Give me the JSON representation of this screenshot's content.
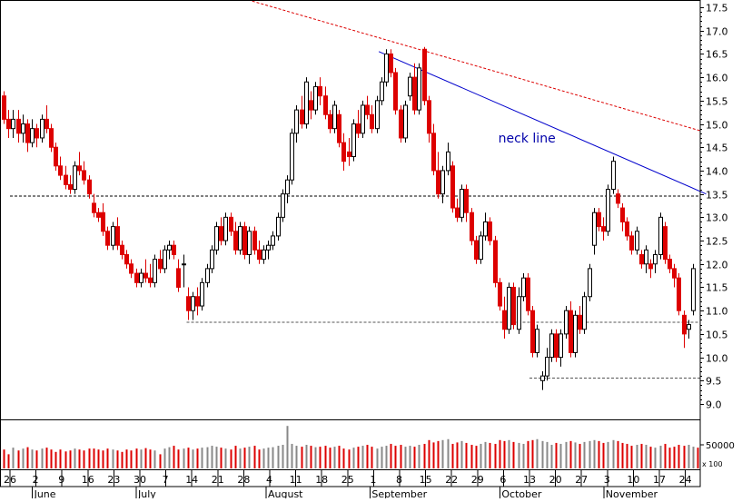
{
  "chart_data": {
    "type": "candlestick",
    "y_axis": {
      "position": "right",
      "min": 9.0,
      "max": 17.5,
      "ticks": [
        "17.5",
        "17.0",
        "16.5",
        "16.0",
        "15.5",
        "15.0",
        "14.5",
        "14.0",
        "13.5",
        "13.0",
        "12.5",
        "12.0",
        "11.5",
        "11.0",
        "10.5",
        "10.0",
        "9.5",
        "9.0"
      ]
    },
    "volume_axis": {
      "tick_label": "50000",
      "unit_label": "x 100",
      "max": 100000
    },
    "x_axis": {
      "day_labels": [
        "26",
        "2",
        "9",
        "16",
        "23",
        "30",
        "7",
        "14",
        "21",
        "28",
        "4",
        "11",
        "18",
        "25",
        "1",
        "8",
        "15",
        "22",
        "29",
        "6",
        "13",
        "20",
        "27",
        "3",
        "10",
        "17",
        "24"
      ],
      "month_labels": [
        {
          "label": "June",
          "day_index": 1
        },
        {
          "label": "July",
          "day_index": 5
        },
        {
          "label": "August",
          "day_index": 10
        },
        {
          "label": "September",
          "day_index": 14
        },
        {
          "label": "October",
          "day_index": 19
        },
        {
          "label": "November",
          "day_index": 23
        }
      ]
    },
    "horizontal_levels": [
      {
        "value": 13.45,
        "style": "dashed",
        "color": "#000000",
        "from_day": 0
      },
      {
        "value": 10.75,
        "style": "dashed",
        "color": "#555555",
        "from_day": 6.8
      },
      {
        "value": 9.55,
        "style": "dashed",
        "color": "#555555",
        "from_day": 20
      }
    ],
    "trendlines": [
      {
        "name": "",
        "from": [
          5.8,
          18.2
        ],
        "to": [
          26.6,
          14.85
        ],
        "color": "#dd0000",
        "style": "dotted"
      },
      {
        "name": "neck line",
        "from": [
          14.2,
          16.55
        ],
        "to": [
          26.8,
          13.5
        ],
        "color": "#0000cc",
        "style": "solid"
      }
    ],
    "annotations": [
      {
        "text": "neck line",
        "day": 18.8,
        "value": 14.6,
        "color": "#0000aa"
      }
    ],
    "colors": {
      "up": "#000000",
      "down": "#dd0000",
      "volume_up": "#888888",
      "volume_down": "#dd0000"
    },
    "candles": [
      [
        15.6,
        15.7,
        15.0,
        15.1
      ],
      [
        15.1,
        15.3,
        14.7,
        14.9
      ],
      [
        14.9,
        15.3,
        14.7,
        15.1
      ],
      [
        15.1,
        15.3,
        14.6,
        14.8
      ],
      [
        14.8,
        15.2,
        14.6,
        15.0
      ],
      [
        15.0,
        15.1,
        14.4,
        14.6
      ],
      [
        14.6,
        15.1,
        14.5,
        14.9
      ],
      [
        14.9,
        15.0,
        14.5,
        14.7
      ],
      [
        14.7,
        15.2,
        14.6,
        15.1
      ],
      [
        15.1,
        15.4,
        14.8,
        14.9
      ],
      [
        14.9,
        15.0,
        14.4,
        14.5
      ],
      [
        14.5,
        14.6,
        14.0,
        14.1
      ],
      [
        14.1,
        14.3,
        13.8,
        13.9
      ],
      [
        13.9,
        14.1,
        13.6,
        13.7
      ],
      [
        13.7,
        13.9,
        13.5,
        13.6
      ],
      [
        13.6,
        14.2,
        13.5,
        14.1
      ],
      [
        14.1,
        14.4,
        13.9,
        14.0
      ],
      [
        14.0,
        14.2,
        13.7,
        13.8
      ],
      [
        13.8,
        13.9,
        13.4,
        13.5
      ],
      [
        13.3,
        13.5,
        13.0,
        13.1
      ],
      [
        13.1,
        13.2,
        12.9,
        13.0
      ],
      [
        13.1,
        13.3,
        12.6,
        12.7
      ],
      [
        12.7,
        12.8,
        12.3,
        12.4
      ],
      [
        12.4,
        12.9,
        12.3,
        12.8
      ],
      [
        12.8,
        13.0,
        12.3,
        12.4
      ],
      [
        12.4,
        12.5,
        12.1,
        12.2
      ],
      [
        12.2,
        12.3,
        11.9,
        12.0
      ],
      [
        12.0,
        12.1,
        11.7,
        11.8
      ],
      [
        11.8,
        11.9,
        11.5,
        11.6
      ],
      [
        11.6,
        11.9,
        11.5,
        11.8
      ],
      [
        11.8,
        12.1,
        11.6,
        11.7
      ],
      [
        11.7,
        12.0,
        11.5,
        11.6
      ],
      [
        11.6,
        12.2,
        11.5,
        12.1
      ],
      [
        12.1,
        12.3,
        11.8,
        11.9
      ],
      [
        11.9,
        12.4,
        11.8,
        12.3
      ],
      [
        12.3,
        12.5,
        12.1,
        12.4
      ],
      [
        12.4,
        12.5,
        12.1,
        12.2
      ],
      [
        11.9,
        12.1,
        11.4,
        11.5
      ],
      [
        12.0,
        12.2,
        11.5,
        12.0
      ],
      [
        11.3,
        11.5,
        10.8,
        11.0
      ],
      [
        11.0,
        11.4,
        10.8,
        11.3
      ],
      [
        11.3,
        11.5,
        10.9,
        11.1
      ],
      [
        11.1,
        11.7,
        11.0,
        11.6
      ],
      [
        11.6,
        12.0,
        11.5,
        11.9
      ],
      [
        11.9,
        12.4,
        11.8,
        12.3
      ],
      [
        12.3,
        12.9,
        12.2,
        12.8
      ],
      [
        12.8,
        13.0,
        12.4,
        12.5
      ],
      [
        12.5,
        13.1,
        12.4,
        13.0
      ],
      [
        13.0,
        13.1,
        12.6,
        12.7
      ],
      [
        12.7,
        12.9,
        12.2,
        12.3
      ],
      [
        12.3,
        12.9,
        12.2,
        12.8
      ],
      [
        12.8,
        12.9,
        12.1,
        12.2
      ],
      [
        12.2,
        12.8,
        12.0,
        12.7
      ],
      [
        12.7,
        12.8,
        12.2,
        12.3
      ],
      [
        12.3,
        12.5,
        12.0,
        12.1
      ],
      [
        12.1,
        12.4,
        12.0,
        12.3
      ],
      [
        12.3,
        12.5,
        12.1,
        12.4
      ],
      [
        12.4,
        12.7,
        12.3,
        12.6
      ],
      [
        12.6,
        13.1,
        12.5,
        13.0
      ],
      [
        13.0,
        13.6,
        12.9,
        13.5
      ],
      [
        13.5,
        13.9,
        13.3,
        13.8
      ],
      [
        13.8,
        14.9,
        13.7,
        14.8
      ],
      [
        14.8,
        15.4,
        14.6,
        15.3
      ],
      [
        15.3,
        15.6,
        14.9,
        15.0
      ],
      [
        15.0,
        16.0,
        14.9,
        15.9
      ],
      [
        15.5,
        15.7,
        15.1,
        15.3
      ],
      [
        15.3,
        15.9,
        15.2,
        15.8
      ],
      [
        15.8,
        16.0,
        15.4,
        15.6
      ],
      [
        15.6,
        15.8,
        15.1,
        15.2
      ],
      [
        15.2,
        15.3,
        14.8,
        14.9
      ],
      [
        14.9,
        15.5,
        14.8,
        15.4
      ],
      [
        15.2,
        15.3,
        14.5,
        14.6
      ],
      [
        14.6,
        14.8,
        14.0,
        14.2
      ],
      [
        14.4,
        14.7,
        14.1,
        14.3
      ],
      [
        14.3,
        15.1,
        14.2,
        15.0
      ],
      [
        15.0,
        15.3,
        14.7,
        14.8
      ],
      [
        14.8,
        15.5,
        14.7,
        15.4
      ],
      [
        15.4,
        15.6,
        15.1,
        15.2
      ],
      [
        15.2,
        15.4,
        14.8,
        14.9
      ],
      [
        14.9,
        15.6,
        14.8,
        15.5
      ],
      [
        15.5,
        16.0,
        15.4,
        15.9
      ],
      [
        15.9,
        16.6,
        15.8,
        16.5
      ],
      [
        16.5,
        16.6,
        16.0,
        16.1
      ],
      [
        16.1,
        16.2,
        15.2,
        15.3
      ],
      [
        15.3,
        15.4,
        14.6,
        14.7
      ],
      [
        14.7,
        15.5,
        14.6,
        15.4
      ],
      [
        15.6,
        16.1,
        15.5,
        16.0
      ],
      [
        16.0,
        16.3,
        15.2,
        15.3
      ],
      [
        15.3,
        16.3,
        15.2,
        16.2
      ],
      [
        16.6,
        16.65,
        15.4,
        15.5
      ],
      [
        15.5,
        15.6,
        14.6,
        14.8
      ],
      [
        14.8,
        15.0,
        13.9,
        14.0
      ],
      [
        14.0,
        14.4,
        13.4,
        13.5
      ],
      [
        13.5,
        14.1,
        13.3,
        14.0
      ],
      [
        14.0,
        14.6,
        13.9,
        14.4
      ],
      [
        14.1,
        14.2,
        13.1,
        13.2
      ],
      [
        13.2,
        13.4,
        12.9,
        13.0
      ],
      [
        13.0,
        13.7,
        12.9,
        13.6
      ],
      [
        13.6,
        13.7,
        12.9,
        13.1
      ],
      [
        13.1,
        13.2,
        12.4,
        12.5
      ],
      [
        12.5,
        12.6,
        12.0,
        12.1
      ],
      [
        12.1,
        12.7,
        12.0,
        12.6
      ],
      [
        12.6,
        13.1,
        12.5,
        12.9
      ],
      [
        12.9,
        13.0,
        12.4,
        12.5
      ],
      [
        12.5,
        12.6,
        11.5,
        11.6
      ],
      [
        11.6,
        11.7,
        11.0,
        11.1
      ],
      [
        11.0,
        11.3,
        10.4,
        10.6
      ],
      [
        10.6,
        11.6,
        10.5,
        11.5
      ],
      [
        11.5,
        11.6,
        10.6,
        10.7
      ],
      [
        10.6,
        11.5,
        10.5,
        11.3
      ],
      [
        11.3,
        11.8,
        11.2,
        11.7
      ],
      [
        11.7,
        11.8,
        10.9,
        11.0
      ],
      [
        11.0,
        11.1,
        10.0,
        10.1
      ],
      [
        10.1,
        10.7,
        10.0,
        10.6
      ],
      [
        9.5,
        9.7,
        9.3,
        9.6
      ],
      [
        9.6,
        10.2,
        9.5,
        10.0
      ],
      [
        10.0,
        10.6,
        9.9,
        10.5
      ],
      [
        10.5,
        10.6,
        9.9,
        10.0
      ],
      [
        10.0,
        10.6,
        9.8,
        10.5
      ],
      [
        10.5,
        11.1,
        10.4,
        11.0
      ],
      [
        11.0,
        11.2,
        10.0,
        10.1
      ],
      [
        10.1,
        11.0,
        10.0,
        10.9
      ],
      [
        10.9,
        11.1,
        10.5,
        10.6
      ],
      [
        10.6,
        11.4,
        10.5,
        11.3
      ],
      [
        11.3,
        12.0,
        11.2,
        11.9
      ],
      [
        12.4,
        13.2,
        12.2,
        13.1
      ],
      [
        13.1,
        13.2,
        12.7,
        12.8
      ],
      [
        12.8,
        13.0,
        12.5,
        12.7
      ],
      [
        12.7,
        13.7,
        12.6,
        13.6
      ],
      [
        13.6,
        14.3,
        13.5,
        14.2
      ],
      [
        13.5,
        13.6,
        13.2,
        13.3
      ],
      [
        13.2,
        13.3,
        12.7,
        12.9
      ],
      [
        12.9,
        13.0,
        12.5,
        12.6
      ],
      [
        12.6,
        12.7,
        12.2,
        12.3
      ],
      [
        12.3,
        12.8,
        12.2,
        12.7
      ],
      [
        12.2,
        12.3,
        11.9,
        12.0
      ],
      [
        12.0,
        12.4,
        11.8,
        12.3
      ],
      [
        12.0,
        12.1,
        11.7,
        11.9
      ],
      [
        12.0,
        12.3,
        11.8,
        12.2
      ],
      [
        12.2,
        13.1,
        12.1,
        13.0
      ],
      [
        12.8,
        12.9,
        12.0,
        12.1
      ],
      [
        12.1,
        12.2,
        11.8,
        11.9
      ],
      [
        11.9,
        12.0,
        11.5,
        11.7
      ],
      [
        11.7,
        11.8,
        10.9,
        11.0
      ],
      [
        10.9,
        11.0,
        10.2,
        10.5
      ],
      [
        10.6,
        10.8,
        10.4,
        10.7
      ],
      [
        11.0,
        12.0,
        10.9,
        11.9
      ]
    ],
    "volumes": [
      40000,
      30000,
      44000,
      38000,
      42000,
      45000,
      40000,
      38000,
      42000,
      44000,
      40000,
      35000,
      40000,
      36000,
      38000,
      42000,
      40000,
      38000,
      42000,
      42000,
      40000,
      38000,
      42000,
      40000,
      38000,
      35000,
      40000,
      38000,
      42000,
      40000,
      43000,
      40000,
      38000,
      30000,
      42000,
      45000,
      48000,
      40000,
      42000,
      44000,
      40000,
      42000,
      44000,
      45000,
      48000,
      46000,
      44000,
      42000,
      40000,
      48000,
      42000,
      44000,
      46000,
      48000,
      40000,
      42000,
      44000,
      45000,
      48000,
      50000,
      90000,
      52000,
      48000,
      46000,
      50000,
      48000,
      45000,
      46000,
      48000,
      44000,
      46000,
      48000,
      42000,
      40000,
      44000,
      46000,
      48000,
      50000,
      46000,
      42000,
      46000,
      48000,
      52000,
      48000,
      50000,
      46000,
      48000,
      46000,
      50000,
      52000,
      60000,
      55000,
      58000,
      60000,
      62000,
      52000,
      55000,
      58000,
      54000,
      50000,
      48000,
      52000,
      56000,
      54000,
      52000,
      60000,
      58000,
      60000,
      56000,
      54000,
      52000,
      58000,
      60000,
      62000,
      58000,
      56000,
      50000,
      54000,
      52000,
      56000,
      58000,
      55000,
      52000,
      56000,
      58000,
      60000,
      58000,
      54000,
      56000,
      60000,
      58000,
      54000,
      52000,
      48000,
      50000,
      52000,
      50000,
      46000,
      44000,
      48000,
      52000,
      44000,
      46000,
      50000,
      48000,
      50000,
      46000,
      44000
    ]
  }
}
